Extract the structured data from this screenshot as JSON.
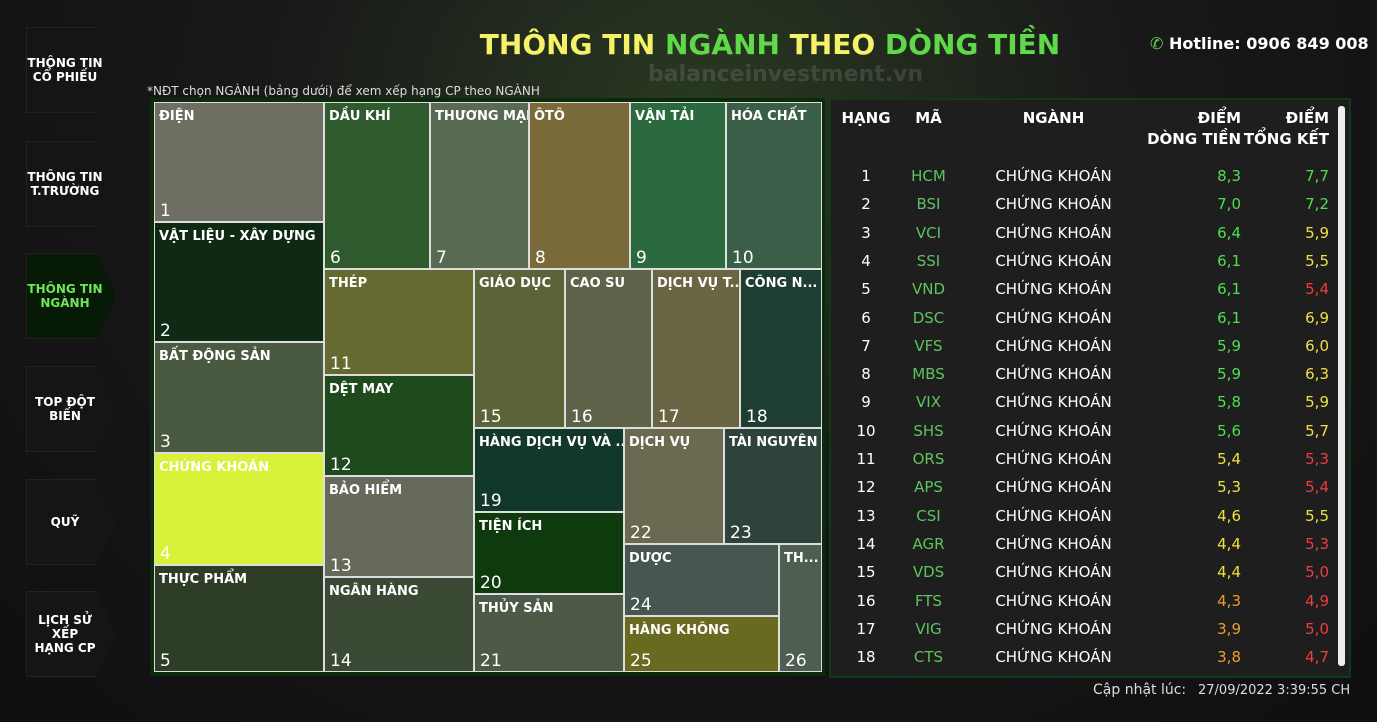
{
  "header": {
    "title_parts": [
      {
        "text": "THÔNG TIN ",
        "color": "#f5f26a"
      },
      {
        "text": "NGÀNH",
        "color": "#5fd84a"
      },
      {
        "text": " THEO ",
        "color": "#f5f26a"
      },
      {
        "text": "DÒNG TIỀN",
        "color": "#5fd84a"
      }
    ],
    "hotline": "Hotline: 0906 849 008",
    "watermark": "balanceinvestment.vn"
  },
  "sidebar": {
    "items": [
      "THÔNG TIN\nCỔ PHIẾU",
      "THÔNG TIN\nT.TRƯỜNG",
      "THÔNG TIN\nNGÀNH",
      "TOP ĐỘT\nBIẾN",
      "QUỸ",
      "LỊCH SỬ XẾP\nHẠNG CP"
    ],
    "active": 2
  },
  "note": "*NĐT chọn NGÀNH (bảng dưới) để xem xếp hạng CP theo NGÀNH",
  "treemap": {
    "tiles": [
      {
        "label": "ĐIỆN",
        "rank": 1,
        "color": "#6e6e62"
      },
      {
        "label": "VẬT LIỆU - XÂY DỰNG",
        "rank": 2,
        "color": "#0f2a14"
      },
      {
        "label": "BẤT ĐỘNG SẢN",
        "rank": 3,
        "color": "#4a5a40"
      },
      {
        "label": "CHỨNG KHOÁN",
        "rank": 4,
        "color": "#d8f23a"
      },
      {
        "label": "THỰC PHẨM",
        "rank": 5,
        "color": "#2e3e26"
      },
      {
        "label": "DẦU KHÍ",
        "rank": 6,
        "color": "#2e5a2e"
      },
      {
        "label": "THƯƠNG MẠI",
        "rank": 7,
        "color": "#586a52"
      },
      {
        "label": "ÔTÔ",
        "rank": 8,
        "color": "#7a6a3a"
      },
      {
        "label": "VẬN TẢI",
        "rank": 9,
        "color": "#2a6a3e"
      },
      {
        "label": "HÓA CHẤT",
        "rank": 10,
        "color": "#3a5e48"
      },
      {
        "label": "THÉP",
        "rank": 11,
        "color": "#646a30"
      },
      {
        "label": "DỆT MAY",
        "rank": 12,
        "color": "#1e4a1e"
      },
      {
        "label": "BẢO HIỂM",
        "rank": 13,
        "color": "#666a5a"
      },
      {
        "label": "NGÂN HÀNG",
        "rank": 14,
        "color": "#3a4a34"
      },
      {
        "label": "GIÁO DỤC",
        "rank": 15,
        "color": "#5a6438"
      },
      {
        "label": "CAO SU",
        "rank": 16,
        "color": "#5e6248"
      },
      {
        "label": "DỊCH VỤ T...",
        "rank": 17,
        "color": "#6a6644"
      },
      {
        "label": "CÔNG N...",
        "rank": 18,
        "color": "#1e3e32"
      },
      {
        "label": "HÀNG DỊCH VỤ VÀ ...",
        "rank": 19,
        "color": "#12382a"
      },
      {
        "label": "TIỆN ÍCH",
        "rank": 20,
        "color": "#0e3a0e"
      },
      {
        "label": "THỦY SẢN",
        "rank": 21,
        "color": "#4e5a48"
      },
      {
        "label": "DỊCH VỤ",
        "rank": 22,
        "color": "#6a6a50"
      },
      {
        "label": "TÀI NGUYÊN",
        "rank": 23,
        "color": "#2e443a"
      },
      {
        "label": "DƯỢC",
        "rank": 24,
        "color": "#485650"
      },
      {
        "label": "HÀNG KHÔNG",
        "rank": 25,
        "color": "#686a20"
      },
      {
        "label": "TH...",
        "rank": 26,
        "color": "#4e5e50"
      }
    ]
  },
  "table": {
    "headers": [
      "HẠNG",
      "MÃ",
      "NGÀNH",
      "ĐIỂM\nDÒNG TIỀN",
      "ĐIỂM\nTỔNG KẾT"
    ],
    "rows": [
      {
        "rank": 1,
        "code": "HCM",
        "sector": "CHỨNG KHOÁN",
        "flow": "8,3",
        "total": "7,7",
        "flow_color": "#4ee04e",
        "total_color": "#4ee04e"
      },
      {
        "rank": 2,
        "code": "BSI",
        "sector": "CHỨNG KHOÁN",
        "flow": "7,0",
        "total": "7,2",
        "flow_color": "#4ee04e",
        "total_color": "#4ee04e"
      },
      {
        "rank": 3,
        "code": "VCI",
        "sector": "CHỨNG KHOÁN",
        "flow": "6,4",
        "total": "5,9",
        "flow_color": "#4ee04e",
        "total_color": "#f0e040"
      },
      {
        "rank": 4,
        "code": "SSI",
        "sector": "CHỨNG KHOÁN",
        "flow": "6,1",
        "total": "5,5",
        "flow_color": "#4ee04e",
        "total_color": "#f0e040"
      },
      {
        "rank": 5,
        "code": "VND",
        "sector": "CHỨNG KHOÁN",
        "flow": "6,1",
        "total": "5,4",
        "flow_color": "#4ee04e",
        "total_color": "#f03c3c"
      },
      {
        "rank": 6,
        "code": "DSC",
        "sector": "CHỨNG KHOÁN",
        "flow": "6,1",
        "total": "6,9",
        "flow_color": "#4ee04e",
        "total_color": "#f0e040"
      },
      {
        "rank": 7,
        "code": "VFS",
        "sector": "CHỨNG KHOÁN",
        "flow": "5,9",
        "total": "6,0",
        "flow_color": "#4ee04e",
        "total_color": "#f0e040"
      },
      {
        "rank": 8,
        "code": "MBS",
        "sector": "CHỨNG KHOÁN",
        "flow": "5,9",
        "total": "6,3",
        "flow_color": "#4ee04e",
        "total_color": "#f0e040"
      },
      {
        "rank": 9,
        "code": "VIX",
        "sector": "CHỨNG KHOÁN",
        "flow": "5,8",
        "total": "5,9",
        "flow_color": "#4ee04e",
        "total_color": "#f0e040"
      },
      {
        "rank": 10,
        "code": "SHS",
        "sector": "CHỨNG KHOÁN",
        "flow": "5,6",
        "total": "5,7",
        "flow_color": "#4ee04e",
        "total_color": "#f0e040"
      },
      {
        "rank": 11,
        "code": "ORS",
        "sector": "CHỨNG KHOÁN",
        "flow": "5,4",
        "total": "5,3",
        "flow_color": "#f0e040",
        "total_color": "#f03c3c"
      },
      {
        "rank": 12,
        "code": "APS",
        "sector": "CHỨNG KHOÁN",
        "flow": "5,3",
        "total": "5,4",
        "flow_color": "#f0e040",
        "total_color": "#f03c3c"
      },
      {
        "rank": 13,
        "code": "CSI",
        "sector": "CHỨNG KHOÁN",
        "flow": "4,6",
        "total": "5,5",
        "flow_color": "#f0e040",
        "total_color": "#f0e040"
      },
      {
        "rank": 14,
        "code": "AGR",
        "sector": "CHỨNG KHOÁN",
        "flow": "4,4",
        "total": "5,3",
        "flow_color": "#f0e040",
        "total_color": "#f03c3c"
      },
      {
        "rank": 15,
        "code": "VDS",
        "sector": "CHỨNG KHOÁN",
        "flow": "4,4",
        "total": "5,0",
        "flow_color": "#f0e040",
        "total_color": "#f03c3c"
      },
      {
        "rank": 16,
        "code": "FTS",
        "sector": "CHỨNG KHOÁN",
        "flow": "4,3",
        "total": "4,9",
        "flow_color": "#f09a30",
        "total_color": "#f03c3c"
      },
      {
        "rank": 17,
        "code": "VIG",
        "sector": "CHỨNG KHOÁN",
        "flow": "3,9",
        "total": "5,0",
        "flow_color": "#f09a30",
        "total_color": "#f03c3c"
      },
      {
        "rank": 18,
        "code": "CTS",
        "sector": "CHỨNG KHOÁN",
        "flow": "3,8",
        "total": "4,7",
        "flow_color": "#f09a30",
        "total_color": "#f03c3c"
      }
    ]
  },
  "footer": {
    "label": "Cập nhật lúc:",
    "time": "27/09/2022 3:39:55 CH"
  }
}
